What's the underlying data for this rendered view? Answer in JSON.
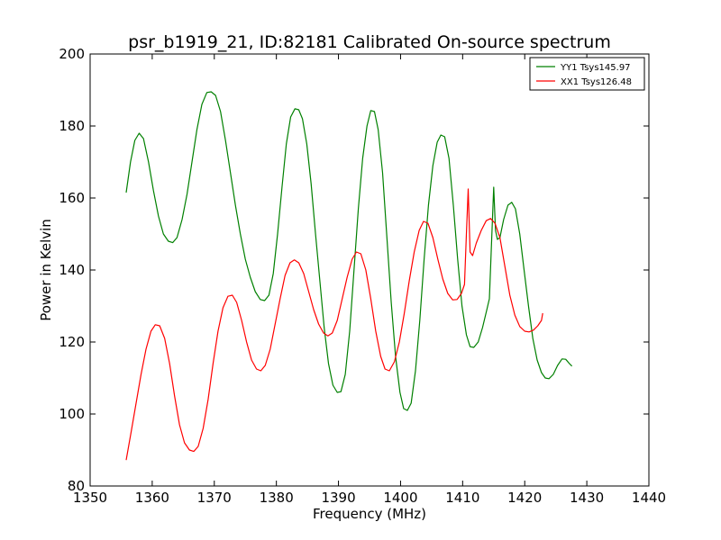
{
  "chart_data": {
    "type": "line",
    "title": "psr_b1919_21, ID:82181 Calibrated On-source spectrum",
    "xlabel": "Frequency (MHz)",
    "ylabel": "Power in Kelvin",
    "xlim": [
      1350,
      1440
    ],
    "ylim": [
      80,
      200
    ],
    "xticks": [
      1350,
      1360,
      1370,
      1380,
      1390,
      1400,
      1410,
      1420,
      1430,
      1440
    ],
    "yticks": [
      80,
      100,
      120,
      140,
      160,
      180,
      200
    ],
    "grid": false,
    "legend_position": "top-right",
    "series": [
      {
        "name": "YY1 Tsys145.97",
        "color": "#008000",
        "points": [
          [
            1355.8,
            161.5
          ],
          [
            1356.5,
            170
          ],
          [
            1357.2,
            176
          ],
          [
            1357.9,
            178
          ],
          [
            1358.6,
            176.5
          ],
          [
            1359.4,
            170
          ],
          [
            1360.2,
            162
          ],
          [
            1361.0,
            155
          ],
          [
            1361.8,
            150
          ],
          [
            1362.6,
            148
          ],
          [
            1363.3,
            147.6
          ],
          [
            1364.0,
            149
          ],
          [
            1364.8,
            154
          ],
          [
            1365.6,
            161
          ],
          [
            1366.4,
            170
          ],
          [
            1367.2,
            179
          ],
          [
            1368.0,
            186
          ],
          [
            1368.8,
            189.3
          ],
          [
            1369.5,
            189.5
          ],
          [
            1370.2,
            188.5
          ],
          [
            1371.0,
            184
          ],
          [
            1371.8,
            176
          ],
          [
            1372.6,
            167
          ],
          [
            1373.4,
            158
          ],
          [
            1374.2,
            150
          ],
          [
            1375.0,
            143
          ],
          [
            1375.8,
            138
          ],
          [
            1376.6,
            134
          ],
          [
            1377.4,
            131.8
          ],
          [
            1378.1,
            131.5
          ],
          [
            1378.8,
            133
          ],
          [
            1379.5,
            139
          ],
          [
            1380.2,
            150
          ],
          [
            1380.9,
            163
          ],
          [
            1381.6,
            175
          ],
          [
            1382.3,
            182.5
          ],
          [
            1383.0,
            184.8
          ],
          [
            1383.6,
            184.5
          ],
          [
            1384.2,
            182
          ],
          [
            1384.9,
            175
          ],
          [
            1385.6,
            164
          ],
          [
            1386.3,
            150
          ],
          [
            1387.0,
            137
          ],
          [
            1387.7,
            124
          ],
          [
            1388.4,
            114
          ],
          [
            1389.1,
            108
          ],
          [
            1389.8,
            106
          ],
          [
            1390.4,
            106.2
          ],
          [
            1391.1,
            111
          ],
          [
            1391.8,
            123
          ],
          [
            1392.5,
            140
          ],
          [
            1393.2,
            157
          ],
          [
            1393.9,
            171
          ],
          [
            1394.6,
            180
          ],
          [
            1395.2,
            184.3
          ],
          [
            1395.8,
            184
          ],
          [
            1396.4,
            179
          ],
          [
            1397.1,
            167
          ],
          [
            1397.8,
            149
          ],
          [
            1398.5,
            131
          ],
          [
            1399.2,
            116
          ],
          [
            1399.9,
            106
          ],
          [
            1400.5,
            101.5
          ],
          [
            1401.1,
            101
          ],
          [
            1401.7,
            103
          ],
          [
            1402.4,
            112
          ],
          [
            1403.1,
            126
          ],
          [
            1403.8,
            143
          ],
          [
            1404.5,
            158
          ],
          [
            1405.2,
            169
          ],
          [
            1405.9,
            175.5
          ],
          [
            1406.5,
            177.5
          ],
          [
            1407.1,
            177
          ],
          [
            1407.8,
            171
          ],
          [
            1408.5,
            158
          ],
          [
            1409.2,
            143
          ],
          [
            1409.9,
            130
          ],
          [
            1410.6,
            122
          ],
          [
            1411.2,
            118.7
          ],
          [
            1411.8,
            118.5
          ],
          [
            1412.5,
            120
          ],
          [
            1413.2,
            124
          ],
          [
            1413.9,
            129
          ],
          [
            1414.3,
            132
          ],
          [
            1414.6,
            145
          ],
          [
            1415.0,
            163
          ],
          [
            1415.3,
            151
          ],
          [
            1415.6,
            148.5
          ],
          [
            1416.0,
            149
          ],
          [
            1416.6,
            154
          ],
          [
            1417.3,
            158
          ],
          [
            1417.9,
            158.8
          ],
          [
            1418.5,
            157
          ],
          [
            1419.2,
            150
          ],
          [
            1419.9,
            140
          ],
          [
            1420.6,
            130
          ],
          [
            1421.3,
            121
          ],
          [
            1422.0,
            115
          ],
          [
            1422.7,
            111.5
          ],
          [
            1423.3,
            110
          ],
          [
            1423.9,
            109.8
          ],
          [
            1424.6,
            111
          ],
          [
            1425.3,
            113.5
          ],
          [
            1426.0,
            115.3
          ],
          [
            1426.6,
            115.2
          ],
          [
            1427.2,
            114
          ],
          [
            1427.6,
            113.3
          ]
        ]
      },
      {
        "name": "XX1 Tsys126.48",
        "color": "#ff0000",
        "points": [
          [
            1355.8,
            87.2
          ],
          [
            1356.6,
            95
          ],
          [
            1357.4,
            103
          ],
          [
            1358.2,
            111
          ],
          [
            1359.0,
            118
          ],
          [
            1359.8,
            123
          ],
          [
            1360.5,
            124.8
          ],
          [
            1361.2,
            124.5
          ],
          [
            1362.0,
            121
          ],
          [
            1362.8,
            114
          ],
          [
            1363.6,
            105
          ],
          [
            1364.4,
            97
          ],
          [
            1365.2,
            92
          ],
          [
            1366.0,
            90
          ],
          [
            1366.7,
            89.6
          ],
          [
            1367.4,
            91
          ],
          [
            1368.2,
            96
          ],
          [
            1369.0,
            104
          ],
          [
            1369.8,
            114
          ],
          [
            1370.6,
            123
          ],
          [
            1371.4,
            129.5
          ],
          [
            1372.2,
            132.7
          ],
          [
            1372.9,
            133
          ],
          [
            1373.6,
            131
          ],
          [
            1374.4,
            126
          ],
          [
            1375.2,
            120
          ],
          [
            1376.0,
            115
          ],
          [
            1376.8,
            112.5
          ],
          [
            1377.5,
            112
          ],
          [
            1378.2,
            113.5
          ],
          [
            1379.0,
            118
          ],
          [
            1379.8,
            125
          ],
          [
            1380.6,
            132
          ],
          [
            1381.4,
            138.5
          ],
          [
            1382.2,
            142
          ],
          [
            1382.9,
            142.8
          ],
          [
            1383.6,
            142
          ],
          [
            1384.4,
            139
          ],
          [
            1385.2,
            134
          ],
          [
            1386.0,
            129
          ],
          [
            1386.8,
            125
          ],
          [
            1387.6,
            122.5
          ],
          [
            1388.3,
            121.7
          ],
          [
            1389.0,
            122.5
          ],
          [
            1389.8,
            126
          ],
          [
            1390.6,
            132
          ],
          [
            1391.4,
            138
          ],
          [
            1392.2,
            143
          ],
          [
            1392.9,
            145
          ],
          [
            1393.6,
            144.5
          ],
          [
            1394.4,
            140
          ],
          [
            1395.2,
            132
          ],
          [
            1396.0,
            123
          ],
          [
            1396.8,
            116
          ],
          [
            1397.5,
            112.5
          ],
          [
            1398.2,
            112
          ],
          [
            1399.0,
            114.5
          ],
          [
            1399.8,
            120
          ],
          [
            1400.6,
            128
          ],
          [
            1401.4,
            137
          ],
          [
            1402.2,
            145
          ],
          [
            1403.0,
            151
          ],
          [
            1403.7,
            153.5
          ],
          [
            1404.4,
            153
          ],
          [
            1405.2,
            149
          ],
          [
            1406.0,
            143
          ],
          [
            1406.8,
            137.5
          ],
          [
            1407.6,
            133.5
          ],
          [
            1408.4,
            131.7
          ],
          [
            1409.1,
            131.8
          ],
          [
            1409.8,
            133.5
          ],
          [
            1410.3,
            136
          ],
          [
            1410.6,
            150
          ],
          [
            1410.9,
            162.5
          ],
          [
            1411.2,
            145
          ],
          [
            1411.6,
            144
          ],
          [
            1412.2,
            147.5
          ],
          [
            1413.0,
            151
          ],
          [
            1413.8,
            153.7
          ],
          [
            1414.5,
            154.3
          ],
          [
            1415.2,
            153
          ],
          [
            1416.0,
            149
          ],
          [
            1416.8,
            141
          ],
          [
            1417.6,
            133
          ],
          [
            1418.4,
            127.5
          ],
          [
            1419.2,
            124.3
          ],
          [
            1420.0,
            123
          ],
          [
            1420.7,
            122.8
          ],
          [
            1421.4,
            123.3
          ],
          [
            1422.1,
            124.5
          ],
          [
            1422.7,
            126
          ],
          [
            1422.9,
            128
          ]
        ]
      }
    ]
  }
}
